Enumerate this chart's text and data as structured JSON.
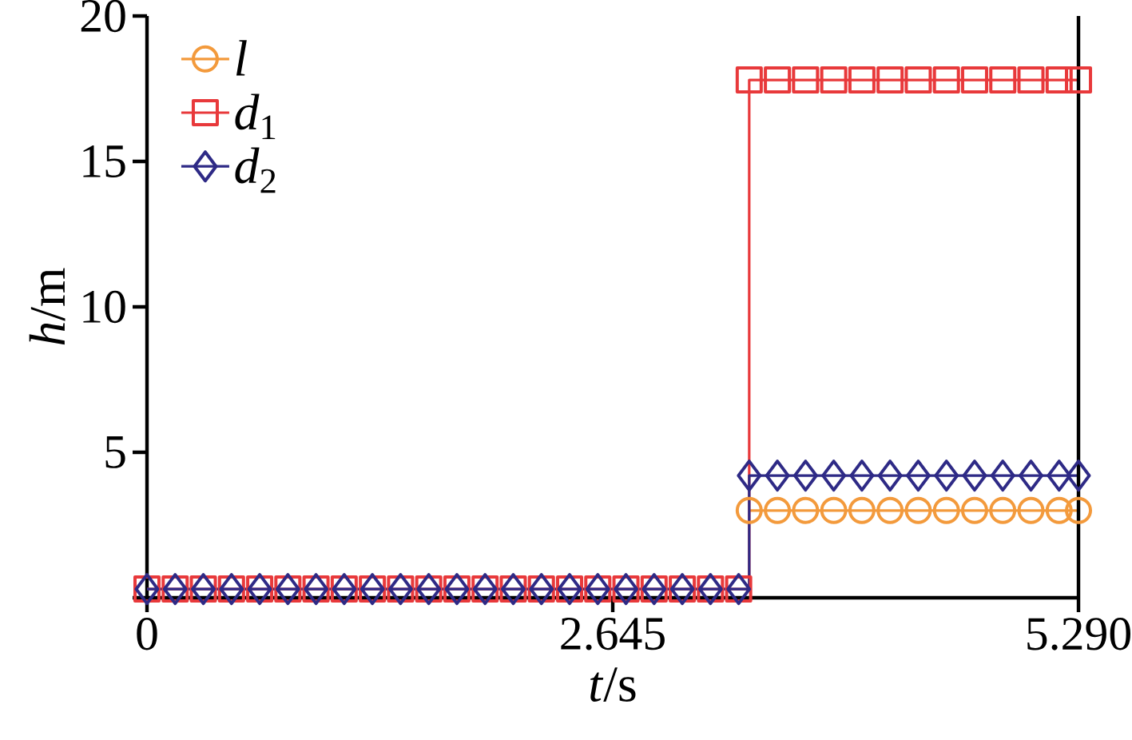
{
  "chart_data": {
    "type": "step",
    "xlabel": "*t*/s",
    "ylabel": "*h*/m",
    "xlim": [
      0,
      5.29
    ],
    "ylim": [
      0,
      20
    ],
    "xticks": [
      {
        "value": 0,
        "label": "0"
      },
      {
        "value": 2.645,
        "label": "2.645"
      },
      {
        "value": 5.29,
        "label": "5.290"
      }
    ],
    "yticks": [
      {
        "value": 0,
        "label": null
      },
      5,
      10,
      15,
      20
    ],
    "x": [
      0,
      0.16,
      0.32,
      0.48,
      0.64,
      0.8,
      0.96,
      1.12,
      1.28,
      1.44,
      1.6,
      1.76,
      1.92,
      2.08,
      2.24,
      2.4,
      2.56,
      2.72,
      2.88,
      3.04,
      3.2,
      3.36,
      3.42,
      3.58,
      3.74,
      3.9,
      4.06,
      4.22,
      4.38,
      4.54,
      4.7,
      4.86,
      5.02,
      5.18,
      5.29
    ],
    "series": [
      {
        "name": "*l*",
        "color": "#f39a3c",
        "marker": "circle",
        "values": [
          null,
          null,
          null,
          null,
          null,
          null,
          null,
          null,
          null,
          null,
          null,
          null,
          null,
          null,
          null,
          null,
          null,
          null,
          null,
          null,
          null,
          null,
          3.0,
          3.0,
          3.0,
          3.0,
          3.0,
          3.0,
          3.0,
          3.0,
          3.0,
          3.0,
          3.0,
          3.0,
          3.0
        ]
      },
      {
        "name": "*d*$_{1}$",
        "color": "#e8393b",
        "marker": "square",
        "values": [
          0.3,
          0.3,
          0.3,
          0.3,
          0.3,
          0.3,
          0.3,
          0.3,
          0.3,
          0.3,
          0.3,
          0.3,
          0.3,
          0.3,
          0.3,
          0.3,
          0.3,
          0.3,
          0.3,
          0.3,
          0.3,
          0.3,
          17.8,
          17.8,
          17.8,
          17.8,
          17.8,
          17.8,
          17.8,
          17.8,
          17.8,
          17.8,
          17.8,
          17.8,
          17.8
        ]
      },
      {
        "name": "*d*$_{2}$",
        "color": "#2e2a86",
        "marker": "diamond",
        "values": [
          0.3,
          0.3,
          0.3,
          0.3,
          0.3,
          0.3,
          0.3,
          0.3,
          0.3,
          0.3,
          0.3,
          0.3,
          0.3,
          0.3,
          0.3,
          0.3,
          0.3,
          0.3,
          0.3,
          0.3,
          0.3,
          0.3,
          4.2,
          4.2,
          4.2,
          4.2,
          4.2,
          4.2,
          4.2,
          4.2,
          4.2,
          4.2,
          4.2,
          4.2,
          4.2
        ]
      }
    ],
    "legend": "top left",
    "grid": false
  }
}
